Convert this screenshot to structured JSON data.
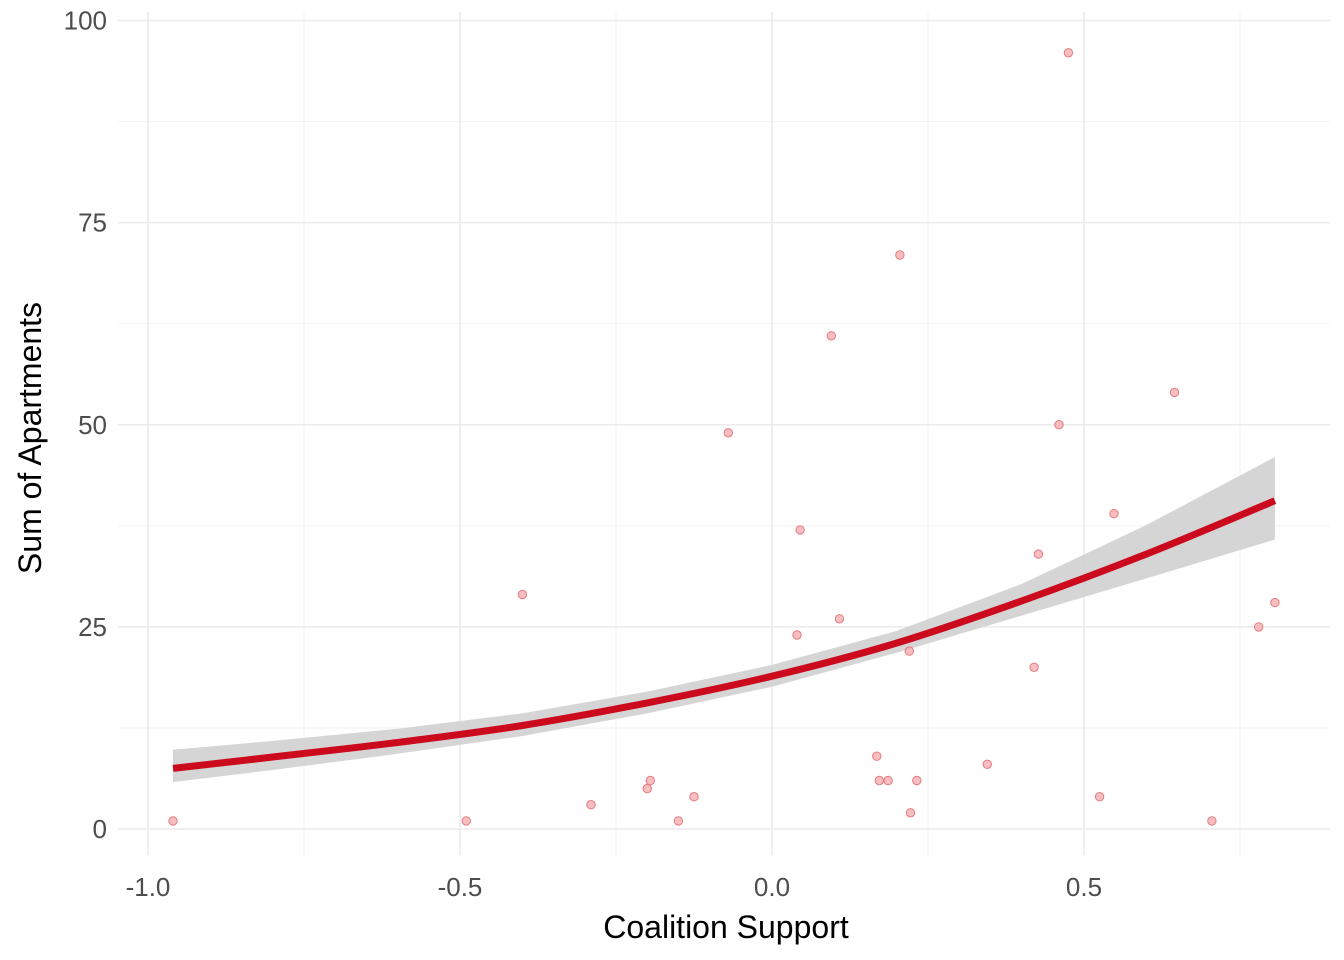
{
  "chart_data": {
    "type": "scatter",
    "title": "",
    "xlabel": "Coalition Support",
    "ylabel": "Sum of Apartments",
    "xlim": [
      -1.0,
      0.8
    ],
    "ylim": [
      0,
      100
    ],
    "x_ticks": [
      -1.0,
      -0.5,
      0.0,
      0.5
    ],
    "x_tick_labels": [
      "-1.0",
      "-0.5",
      "0.0",
      "0.5"
    ],
    "y_ticks": [
      0,
      25,
      50,
      75,
      100
    ],
    "y_tick_labels": [
      "0",
      "25",
      "50",
      "75",
      "100"
    ],
    "grid": true,
    "legend": "none",
    "colors": {
      "points_fill": "#f4a8ab",
      "points_stroke": "#e57a80",
      "line": "#cc0a1e",
      "ribbon": "#d3d3d3"
    },
    "points": [
      {
        "x": -0.96,
        "y": 1
      },
      {
        "x": -0.49,
        "y": 1
      },
      {
        "x": -0.4,
        "y": 29
      },
      {
        "x": -0.29,
        "y": 3
      },
      {
        "x": -0.2,
        "y": 5
      },
      {
        "x": -0.195,
        "y": 6
      },
      {
        "x": -0.15,
        "y": 1
      },
      {
        "x": -0.125,
        "y": 4
      },
      {
        "x": -0.07,
        "y": 49
      },
      {
        "x": 0.04,
        "y": 24
      },
      {
        "x": 0.045,
        "y": 37
      },
      {
        "x": 0.095,
        "y": 61
      },
      {
        "x": 0.108,
        "y": 26
      },
      {
        "x": 0.168,
        "y": 9
      },
      {
        "x": 0.172,
        "y": 6
      },
      {
        "x": 0.186,
        "y": 6
      },
      {
        "x": 0.205,
        "y": 71
      },
      {
        "x": 0.22,
        "y": 22
      },
      {
        "x": 0.222,
        "y": 2
      },
      {
        "x": 0.232,
        "y": 6
      },
      {
        "x": 0.345,
        "y": 8
      },
      {
        "x": 0.42,
        "y": 20
      },
      {
        "x": 0.427,
        "y": 34
      },
      {
        "x": 0.46,
        "y": 50
      },
      {
        "x": 0.475,
        "y": 96
      },
      {
        "x": 0.525,
        "y": 4
      },
      {
        "x": 0.548,
        "y": 39
      },
      {
        "x": 0.645,
        "y": 54
      },
      {
        "x": 0.705,
        "y": 1
      },
      {
        "x": 0.78,
        "y": 25
      },
      {
        "x": 0.806,
        "y": 28
      }
    ],
    "fit_line": {
      "x": [
        -0.96,
        -0.8,
        -0.6,
        -0.4,
        -0.2,
        0.0,
        0.2,
        0.4,
        0.6,
        0.806
      ],
      "y": [
        7.5,
        8.9,
        10.7,
        12.8,
        15.6,
        18.9,
        23.0,
        28.2,
        34.0,
        40.6
      ]
    },
    "ribbon": {
      "x": [
        -0.96,
        -0.8,
        -0.6,
        -0.4,
        -0.2,
        0.0,
        0.2,
        0.4,
        0.6,
        0.806
      ],
      "lower": [
        5.8,
        7.3,
        9.3,
        11.5,
        14.3,
        17.6,
        21.8,
        26.4,
        31.0,
        35.8
      ],
      "upper": [
        9.8,
        10.9,
        12.4,
        14.3,
        17.0,
        20.3,
        24.5,
        30.3,
        37.6,
        46.0
      ]
    }
  }
}
